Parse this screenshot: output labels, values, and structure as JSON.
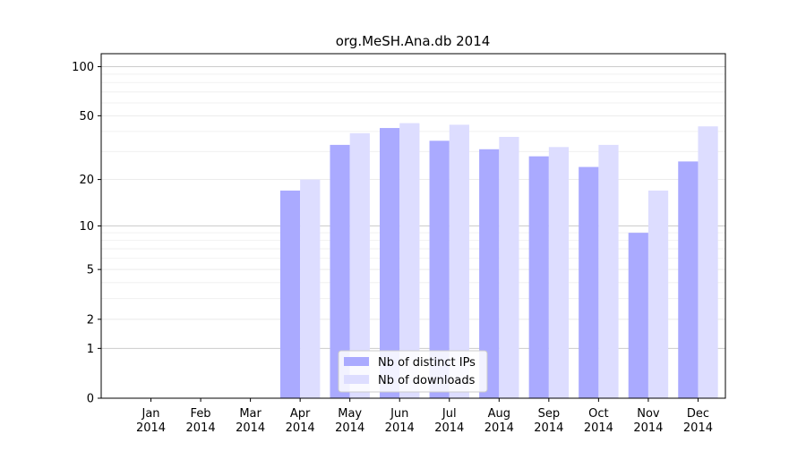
{
  "chart_data": {
    "type": "bar",
    "title": "org.MeSH.Ana.db 2014",
    "xlabel": "",
    "ylabel": "",
    "categories": [
      "Jan\n2014",
      "Feb\n2014",
      "Mar\n2014",
      "Apr\n2014",
      "May\n2014",
      "Jun\n2014",
      "Jul\n2014",
      "Aug\n2014",
      "Sep\n2014",
      "Oct\n2014",
      "Nov\n2014",
      "Dec\n2014"
    ],
    "series": [
      {
        "name": "Nb of distinct IPs",
        "color": "#aaaaff",
        "values": [
          0,
          0,
          0,
          17,
          33,
          42,
          35,
          31,
          28,
          24,
          9,
          26
        ]
      },
      {
        "name": "Nb of downloads",
        "color": "#ddddff",
        "values": [
          0,
          0,
          0,
          20,
          39,
          45,
          44,
          37,
          32,
          33,
          17,
          43
        ]
      }
    ],
    "yscale": "log(1+y)",
    "ylim": [
      0,
      120
    ],
    "yticks": [
      0,
      1,
      2,
      5,
      10,
      20,
      50,
      100
    ],
    "legend": "bottom-center",
    "grid": true
  }
}
